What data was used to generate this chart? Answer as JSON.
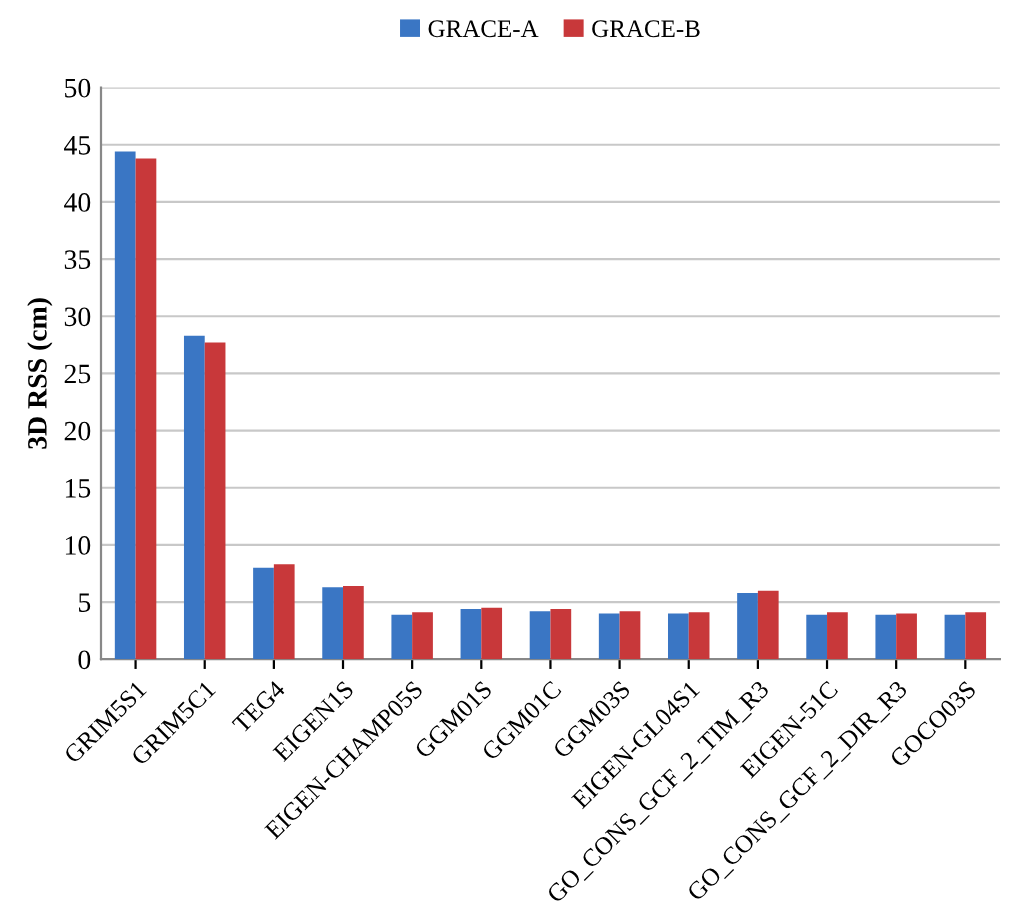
{
  "chart_data": {
    "type": "bar",
    "ylabel": "3D RSS (cm)",
    "categories": [
      "GRIM5S1",
      "GRIM5C1",
      "TEG4",
      "EIGEN1S",
      "EIGEN-CHAMP05S",
      "GGM01S",
      "GGM01C",
      "GGM03S",
      "EIGEN-GL04S1",
      "GO_CONS_GCF_2_TIM_R3",
      "EIGEN-51C",
      "GO_CONS_GCF_2_DIR_R3",
      "GOCO03S"
    ],
    "series": [
      {
        "name": "GRACE-A",
        "color": "#3a76c4",
        "values": [
          44.4,
          28.3,
          8.0,
          6.3,
          3.9,
          4.4,
          4.2,
          4.0,
          4.0,
          5.8,
          3.9,
          3.9,
          3.9
        ]
      },
      {
        "name": "GRACE-B",
        "color": "#c8383a",
        "values": [
          43.8,
          27.7,
          8.3,
          6.4,
          4.1,
          4.5,
          4.4,
          4.2,
          4.1,
          6.0,
          4.1,
          4.0,
          4.1
        ]
      }
    ],
    "ylim": [
      0,
      50
    ],
    "yticks": [
      0,
      5,
      10,
      15,
      20,
      25,
      30,
      35,
      40,
      45,
      50
    ],
    "grid": "y",
    "legend": "top"
  }
}
